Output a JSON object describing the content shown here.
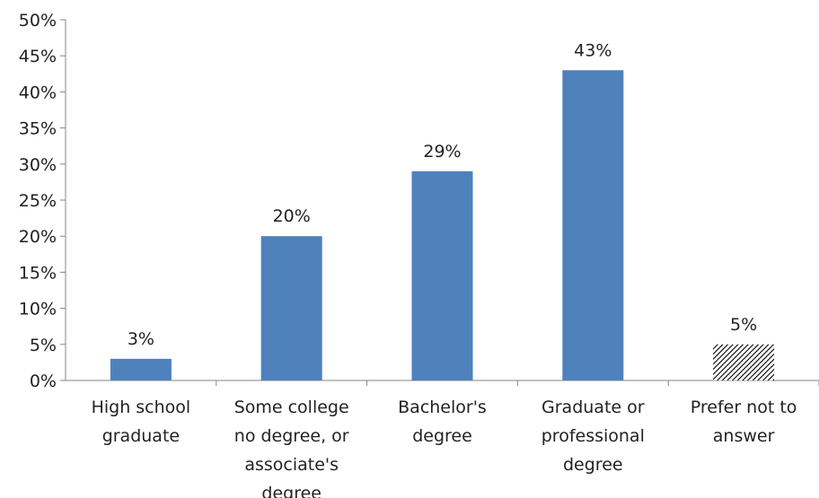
{
  "chart_data": {
    "type": "bar",
    "categories": [
      [
        "High school",
        "graduate"
      ],
      [
        "Some college",
        "no degree, or",
        "associate's",
        "degree"
      ],
      [
        "Bachelor's",
        "degree"
      ],
      [
        "Graduate or",
        "professional",
        "degree"
      ],
      [
        "Prefer not to",
        "answer"
      ]
    ],
    "values": [
      3,
      20,
      29,
      43,
      5
    ],
    "data_labels": [
      "3%",
      "20%",
      "29%",
      "43%",
      "5%"
    ],
    "bar_styles": [
      "solid",
      "solid",
      "solid",
      "solid",
      "hatched"
    ],
    "y_ticks": [
      "0%",
      "5%",
      "10%",
      "15%",
      "20%",
      "25%",
      "30%",
      "35%",
      "40%",
      "45%",
      "50%"
    ],
    "ylim": [
      0,
      50
    ],
    "grid": false,
    "title": "",
    "xlabel": "",
    "ylabel": "",
    "colors": {
      "bar": "#4f81bd",
      "hatch": "#000000",
      "axis": "#868686",
      "text": "#222222"
    }
  }
}
